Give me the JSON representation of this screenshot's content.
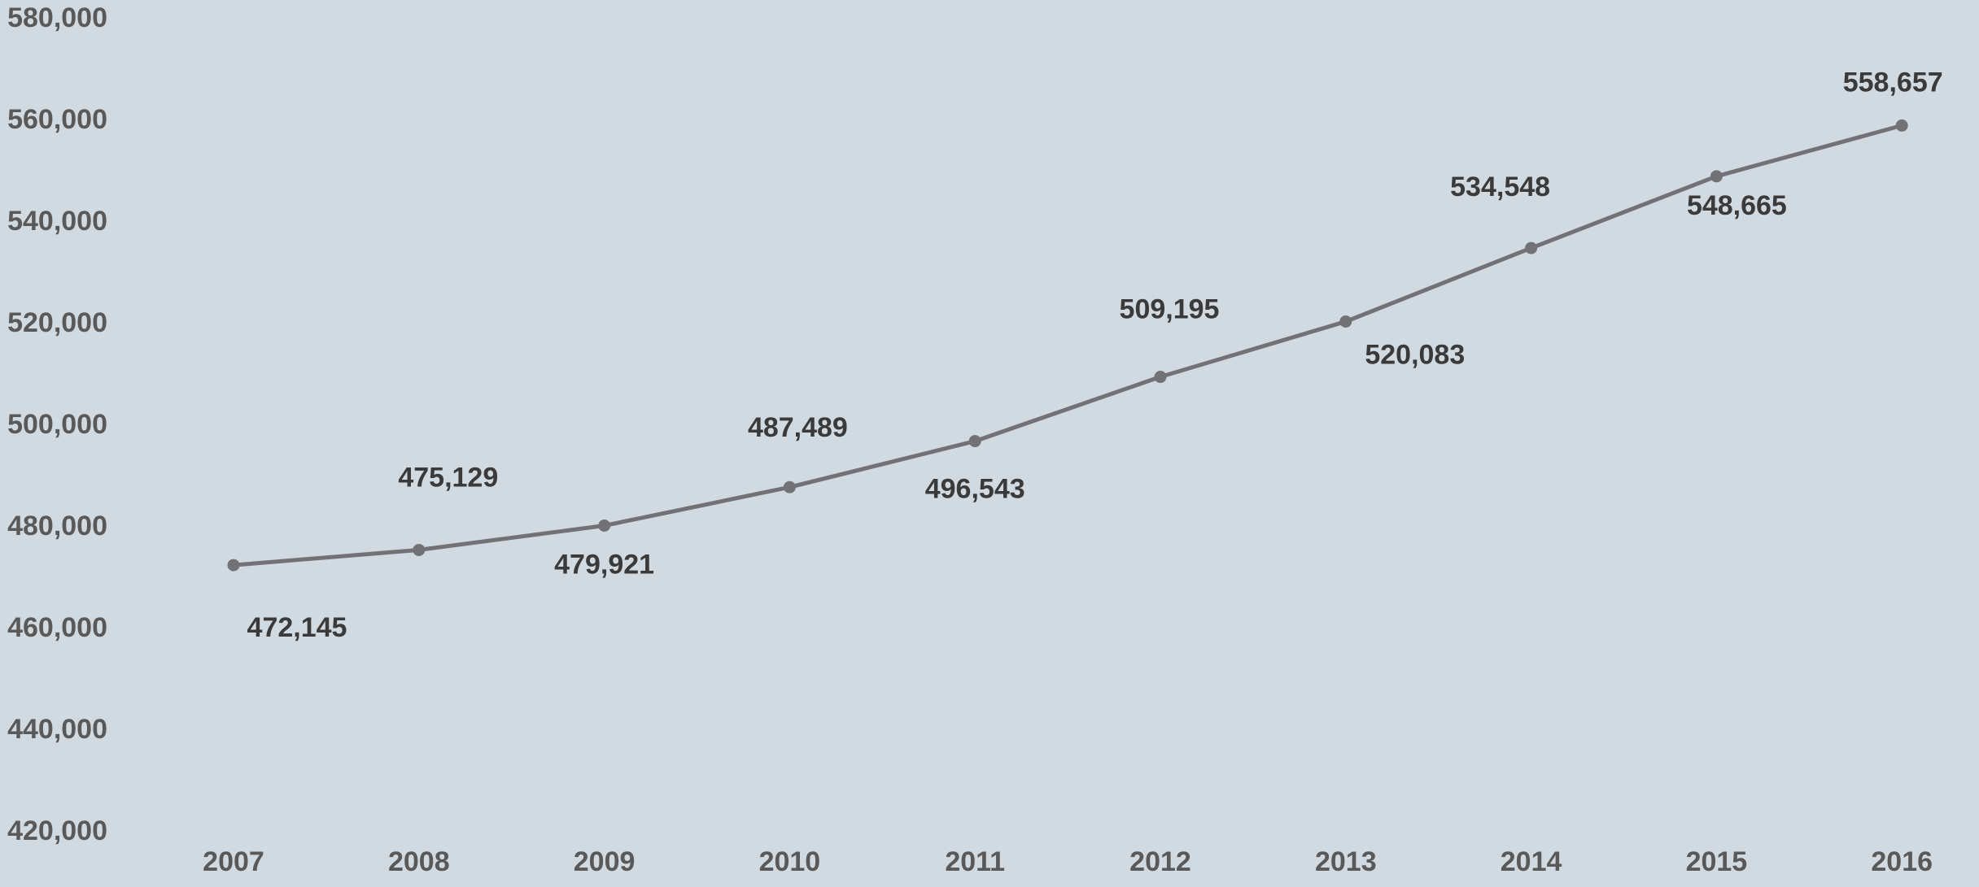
{
  "chart_data": {
    "type": "line",
    "title": "",
    "xlabel": "",
    "ylabel": "",
    "categories": [
      "2007",
      "2008",
      "2009",
      "2010",
      "2011",
      "2012",
      "2013",
      "2014",
      "2015",
      "2016"
    ],
    "series": [
      {
        "values": [
          472145,
          475129,
          479921,
          487489,
          496543,
          509195,
          520083,
          534548,
          548665,
          558657
        ],
        "data_labels": [
          "472,145",
          "475,129",
          "479,921",
          "487,489",
          "496,543",
          "509,195",
          "520,083",
          "534,548",
          "548,665",
          "558,657"
        ],
        "color": "#717176"
      }
    ],
    "ylim": [
      420000,
      580000
    ],
    "y_ticks": [
      420000,
      440000,
      460000,
      480000,
      500000,
      520000,
      540000,
      560000,
      580000
    ],
    "y_tick_labels": [
      "420,000",
      "440,000",
      "460,000",
      "480,000",
      "500,000",
      "520,000",
      "540,000",
      "560,000",
      "580,000"
    ],
    "grid": false,
    "legend": "none",
    "colors": {
      "background": "#d2dae1",
      "line": "#717176",
      "tick_text": "#595959",
      "data_label_text": "#3a3a3a"
    }
  }
}
